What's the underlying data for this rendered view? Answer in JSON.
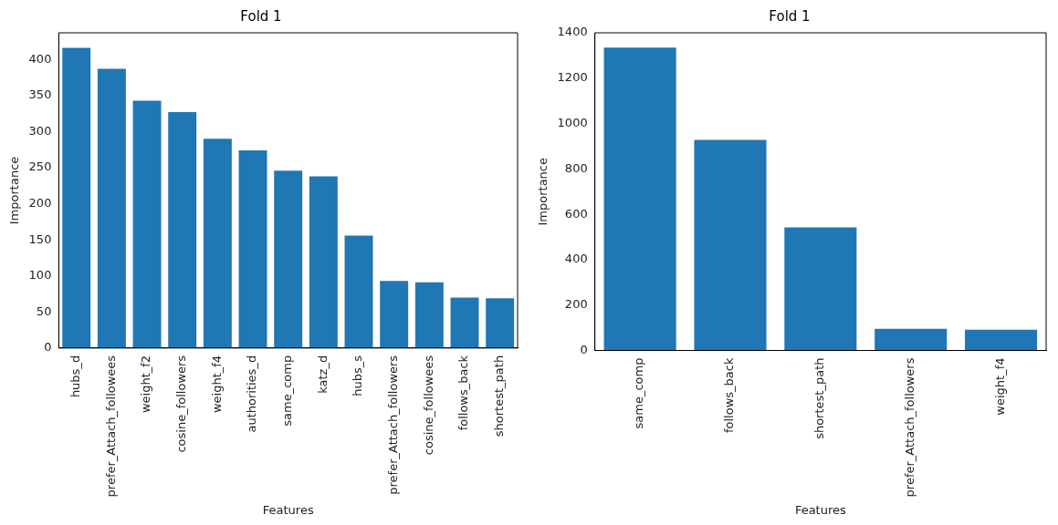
{
  "chart_data": [
    {
      "type": "bar",
      "title": "Fold 1",
      "xlabel": "Features",
      "ylabel": "Importance",
      "categories": [
        "hubs_d",
        "prefer_Attach_followees",
        "weight_f2",
        "cosine_followers",
        "weight_f4",
        "authorities_d",
        "same_comp",
        "katz_d",
        "hubs_s",
        "prefer_Attach_followers",
        "cosine_followees",
        "follows_back",
        "shortest_path"
      ],
      "values": [
        416,
        387,
        343,
        327,
        290,
        274,
        246,
        238,
        156,
        93,
        91,
        70,
        69
      ],
      "color": "#1f77b4",
      "ylim": [
        0,
        437
      ],
      "yticks": [
        0,
        50,
        100,
        150,
        200,
        250,
        300,
        350,
        400
      ],
      "grid": false,
      "legend": false
    },
    {
      "type": "bar",
      "title": "Fold 1",
      "xlabel": "Features",
      "ylabel": "Importance",
      "categories": [
        "same_comp",
        "follows_back",
        "shortest_path",
        "prefer_Attach_followers",
        "weight_f4"
      ],
      "values": [
        1335,
        928,
        542,
        95,
        91
      ],
      "color": "#1f77b4",
      "ylim": [
        0,
        1400
      ],
      "yticks": [
        0,
        200,
        400,
        600,
        800,
        1000,
        1200,
        1400
      ],
      "grid": false,
      "legend": false
    }
  ]
}
